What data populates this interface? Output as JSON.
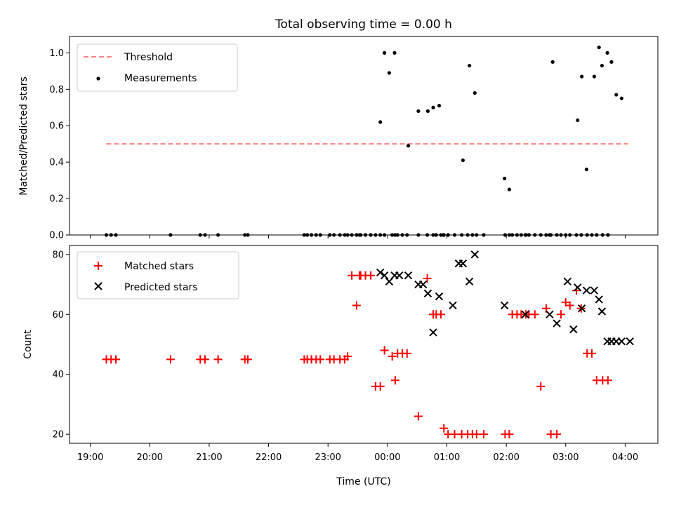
{
  "chart_data": [
    {
      "type": "scatter",
      "title": "Total observing time = 0.00 h",
      "xlabel": "",
      "ylabel": "Matched/Predicted stars",
      "xlim": [
        -0.35,
        9.55
      ],
      "ylim": [
        0,
        1.09
      ],
      "yticks": [
        0.0,
        0.2,
        0.4,
        0.6,
        0.8,
        1.0
      ],
      "ytick_labels": [
        "0.0",
        "0.2",
        "0.4",
        "0.6",
        "0.8",
        "1.0"
      ],
      "xticks": [
        0,
        1,
        2,
        3,
        4,
        5,
        6,
        7,
        8,
        9
      ],
      "legend_position": "top-left",
      "series": [
        {
          "name": "Threshold",
          "style": "dashed-line",
          "color": "#ff7f7f",
          "x": [
            0.27,
            9.05
          ],
          "y": [
            0.5,
            0.5
          ]
        },
        {
          "name": "Measurements",
          "style": "dot",
          "color": "#000000",
          "x": [
            0.27,
            0.35,
            0.43,
            1.35,
            1.85,
            1.93,
            2.15,
            2.6,
            2.65,
            3.6,
            3.65,
            3.72,
            3.8,
            3.87,
            4.03,
            4.1,
            4.2,
            4.28,
            4.33,
            4.4,
            4.48,
            4.53,
            4.55,
            4.63,
            4.72,
            4.8,
            4.88,
            4.95,
            5.08,
            5.13,
            5.17,
            5.25,
            5.33,
            5.52,
            5.67,
            5.77,
            5.82,
            5.9,
            5.95,
            6.02,
            6.13,
            6.25,
            6.35,
            6.43,
            6.5,
            6.62,
            6.98,
            7.05,
            7.1,
            7.18,
            7.25,
            7.33,
            7.38,
            7.48,
            7.58,
            7.67,
            7.75,
            7.85,
            7.92,
            8.0,
            8.07,
            8.18,
            8.26,
            8.36,
            8.44,
            8.52,
            8.62,
            8.71
          ],
          "y": [
            0.0,
            0.0,
            0.0,
            0.0,
            0.0,
            0.0,
            0.0,
            0.0,
            0.0,
            0.0,
            0.0,
            0.0,
            0.0,
            0.0,
            0.0,
            0.0,
            0.0,
            0.0,
            0.0,
            0.0,
            0.0,
            0.0,
            0.0,
            0.0,
            0.0,
            0.0,
            0.0,
            0.0,
            0.0,
            0.0,
            0.0,
            0.0,
            0.0,
            0.0,
            0.0,
            0.0,
            0.0,
            0.0,
            0.0,
            0.0,
            0.0,
            0.0,
            0.0,
            0.0,
            0.0,
            0.0,
            0.0,
            0.0,
            0.0,
            0.0,
            0.0,
            0.0,
            0.0,
            0.0,
            0.0,
            0.0,
            0.0,
            0.0,
            0.0,
            0.0,
            0.0,
            0.0,
            0.0,
            0.0,
            0.0,
            0.0,
            0.0,
            0.0
          ],
          "extra_x": [
            4.88,
            4.95,
            5.03,
            5.12,
            5.35,
            5.52,
            5.68,
            5.77,
            5.87,
            5.94,
            6.02,
            6.27,
            6.38,
            6.47,
            6.97,
            7.05,
            7.32,
            7.73,
            7.78,
            8.2,
            8.27,
            8.35,
            8.48,
            8.56,
            8.61,
            8.7,
            8.77,
            8.85,
            8.94
          ],
          "extra_y": [
            0.62,
            1.0,
            0.89,
            1.0,
            0.49,
            0.68,
            0.68,
            0.7,
            0.71,
            0.0,
            0.0,
            0.41,
            0.93,
            0.78,
            0.31,
            0.25,
            0.0,
            0.0,
            0.95,
            0.63,
            0.87,
            0.36,
            0.87,
            1.03,
            0.93,
            1.0,
            0.95,
            0.77,
            0.75
          ]
        }
      ]
    },
    {
      "type": "scatter",
      "title": "",
      "xlabel": "Time (UTC)",
      "ylabel": "Count",
      "xlim": [
        -0.35,
        9.55
      ],
      "ylim": [
        17,
        83
      ],
      "yticks": [
        20,
        40,
        60,
        80
      ],
      "ytick_labels": [
        "20",
        "40",
        "60",
        "80"
      ],
      "xticks": [
        0,
        1,
        2,
        3,
        4,
        5,
        6,
        7,
        8,
        9
      ],
      "xtick_labels": [
        "19:00",
        "20:00",
        "21:00",
        "22:00",
        "23:00",
        "00:00",
        "01:00",
        "02:00",
        "03:00",
        "04:00"
      ],
      "legend_position": "top-left",
      "series": [
        {
          "name": "Matched stars",
          "style": "plus",
          "color": "#ff0000",
          "x": [
            0.27,
            0.35,
            0.43,
            1.35,
            1.85,
            1.93,
            2.15,
            2.6,
            2.65,
            3.6,
            3.65,
            3.72,
            3.8,
            3.87,
            4.03,
            4.1,
            4.2,
            4.28,
            4.33,
            4.4,
            4.48,
            4.53,
            4.55,
            4.63,
            4.72,
            4.8,
            4.88,
            4.95,
            5.08,
            5.13,
            5.17,
            5.25,
            5.33,
            5.52,
            5.67,
            5.77,
            5.82,
            5.9,
            5.95,
            6.02,
            6.13,
            6.25,
            6.35,
            6.43,
            6.5,
            6.62,
            6.98,
            7.05,
            7.1,
            7.18,
            7.25,
            7.33,
            7.38,
            7.48,
            7.58,
            7.67,
            7.75,
            7.85,
            7.92,
            8.0,
            8.07,
            8.18,
            8.26,
            8.36,
            8.44,
            8.52,
            8.62,
            8.71
          ],
          "y": [
            45,
            45,
            45,
            45,
            45,
            45,
            45,
            45,
            45,
            45,
            45,
            45,
            45,
            45,
            45,
            45,
            45,
            45,
            46,
            73,
            63,
            73,
            73,
            73,
            73,
            36,
            36,
            48,
            46,
            38,
            47,
            47,
            47,
            26,
            72,
            60,
            60,
            60,
            22,
            20,
            20,
            20,
            20,
            20,
            20,
            20,
            20,
            20,
            60,
            60,
            60,
            60,
            60,
            60,
            36,
            62,
            20,
            20,
            60,
            64,
            63,
            68,
            62,
            47,
            47,
            38,
            38,
            38
          ]
        },
        {
          "name": "Predicted stars",
          "style": "cross",
          "color": "#000000",
          "x": [
            4.88,
            4.95,
            5.03,
            5.12,
            5.2,
            5.35,
            5.52,
            5.6,
            5.68,
            5.77,
            5.87,
            6.1,
            6.2,
            6.27,
            6.38,
            6.47,
            6.97,
            7.32,
            7.73,
            7.85,
            8.03,
            8.13,
            8.2,
            8.27,
            8.35,
            8.48,
            8.56,
            8.61,
            8.7,
            8.77,
            8.85,
            8.94,
            9.08
          ],
          "y": [
            74,
            73,
            71,
            73,
            73,
            73,
            70,
            70,
            67,
            54,
            66,
            63,
            77,
            77,
            71,
            80,
            63,
            60,
            60,
            57,
            71,
            55,
            69,
            62,
            68,
            68,
            65,
            61,
            51,
            51,
            51,
            51,
            51
          ]
        }
      ]
    }
  ]
}
